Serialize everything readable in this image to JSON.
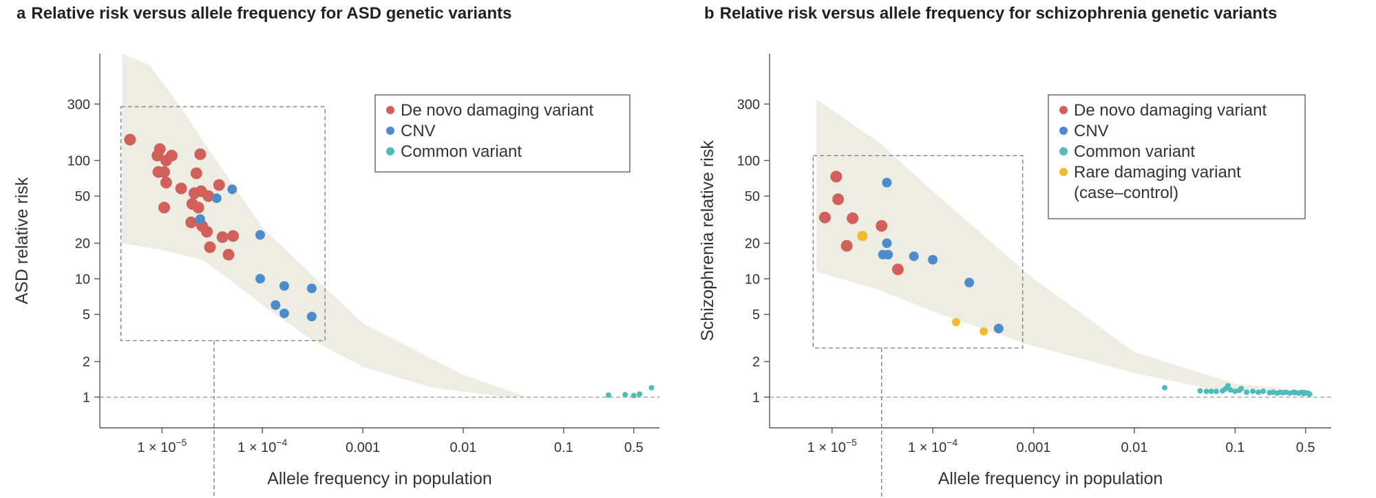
{
  "chart_data": [
    {
      "type": "scatter",
      "letter": "a",
      "title": "Relative risk versus allele frequency for ASD genetic variants",
      "xlabel": "Allele frequency in population",
      "ylabel": "ASD relative risk",
      "x_scale": "log",
      "y_scale": "log",
      "xlim": [
        2.4e-06,
        0.9
      ],
      "ylim": [
        0.55,
        800
      ],
      "x_ticks": [
        {
          "value": 1e-05,
          "base": "1 × 10",
          "exp": "−5"
        },
        {
          "value": 0.0001,
          "base": "1 × 10",
          "exp": "−4"
        },
        {
          "value": 0.001,
          "label": "0.001"
        },
        {
          "value": 0.01,
          "label": "0.01"
        },
        {
          "value": 0.1,
          "label": "0.1"
        },
        {
          "value": 0.5,
          "label": "0.5"
        }
      ],
      "y_ticks": [
        1,
        2,
        5,
        10,
        20,
        50,
        100,
        300
      ],
      "grid": false,
      "legend_position": "top-right",
      "series": [
        {
          "name": "De novo damaging variant",
          "color": "#d1605a",
          "marker_size": "large",
          "points": [
            [
              4.8e-06,
              150
            ],
            [
              9.5e-06,
              125
            ],
            [
              9e-06,
              110
            ],
            [
              1.25e-05,
              110
            ],
            [
              1.1e-05,
              100
            ],
            [
              1.05e-05,
              80
            ],
            [
              9.2e-06,
              80
            ],
            [
              2.4e-05,
              113
            ],
            [
              2.2e-05,
              78
            ],
            [
              1.55e-05,
              58
            ],
            [
              1.1e-05,
              65
            ],
            [
              2.1e-05,
              53
            ],
            [
              2.45e-05,
              55
            ],
            [
              3.7e-05,
              62
            ],
            [
              2e-05,
              43
            ],
            [
              2.3e-05,
              40
            ],
            [
              2.9e-05,
              50
            ],
            [
              1.05e-05,
              40
            ],
            [
              1.95e-05,
              30
            ],
            [
              2.5e-05,
              28
            ],
            [
              2.8e-05,
              25
            ],
            [
              3e-05,
              18.5
            ],
            [
              4e-05,
              22.5
            ],
            [
              5.1e-05,
              23
            ],
            [
              4.6e-05,
              16
            ]
          ]
        },
        {
          "name": "CNV",
          "color": "#4d8ccc",
          "marker_size": "medium",
          "points": [
            [
              5e-05,
              57
            ],
            [
              3.5e-05,
              48
            ],
            [
              2.4e-05,
              32
            ],
            [
              9.5e-05,
              23.5
            ],
            [
              9.5e-05,
              10
            ],
            [
              0.000165,
              8.7
            ],
            [
              0.00031,
              8.3
            ],
            [
              0.000135,
              6
            ],
            [
              0.000165,
              5.1
            ],
            [
              0.00031,
              4.8
            ]
          ]
        },
        {
          "name": "Common variant",
          "color": "#4dbcba",
          "marker_size": "small",
          "points": [
            [
              0.28,
              1.04
            ],
            [
              0.41,
              1.05
            ],
            [
              0.5,
              1.03
            ],
            [
              0.57,
              1.06
            ],
            [
              0.75,
              1.2
            ]
          ]
        }
      ]
    },
    {
      "type": "scatter",
      "letter": "b",
      "title": "Relative risk versus allele frequency for schizophrenia genetic variants",
      "xlabel": "Allele frequency in population",
      "ylabel": "Schizophrenia relative risk",
      "x_scale": "log",
      "y_scale": "log",
      "xlim": [
        2.4e-06,
        0.9
      ],
      "ylim": [
        0.55,
        800
      ],
      "x_ticks": [
        {
          "value": 1e-05,
          "base": "1 × 10",
          "exp": "−5"
        },
        {
          "value": 0.0001,
          "base": "1 × 10",
          "exp": "−4"
        },
        {
          "value": 0.001,
          "label": "0.001"
        },
        {
          "value": 0.01,
          "label": "0.01"
        },
        {
          "value": 0.1,
          "label": "0.1"
        },
        {
          "value": 0.5,
          "label": "0.5"
        }
      ],
      "y_ticks": [
        1,
        2,
        5,
        10,
        20,
        50,
        100,
        300
      ],
      "grid": false,
      "legend_position": "top-right",
      "series": [
        {
          "name": "De novo damaging variant",
          "color": "#d1605a",
          "marker_size": "large",
          "points": [
            [
              1.1e-05,
              73
            ],
            [
              1.15e-05,
              47
            ],
            [
              8.5e-06,
              33
            ],
            [
              1.6e-05,
              32.5
            ],
            [
              3.1e-05,
              28
            ],
            [
              1.4e-05,
              19
            ],
            [
              4.5e-05,
              12
            ]
          ]
        },
        {
          "name": "CNV",
          "color": "#4d8ccc",
          "marker_size": "medium",
          "points": [
            [
              3.5e-05,
              65
            ],
            [
              3.5e-05,
              20
            ],
            [
              3.2e-05,
              16
            ],
            [
              3.6e-05,
              16
            ],
            [
              6.5e-05,
              15.5
            ],
            [
              0.0001,
              14.5
            ],
            [
              0.00023,
              9.3
            ],
            [
              0.00045,
              3.8
            ]
          ]
        },
        {
          "name": "Common variant",
          "color": "#4dbcba",
          "marker_size": "small",
          "points": [
            [
              0.02,
              1.2
            ],
            [
              0.045,
              1.13
            ],
            [
              0.052,
              1.12
            ],
            [
              0.058,
              1.12
            ],
            [
              0.065,
              1.12
            ],
            [
              0.075,
              1.13
            ],
            [
              0.08,
              1.17
            ],
            [
              0.085,
              1.25
            ],
            [
              0.09,
              1.15
            ],
            [
              0.1,
              1.12
            ],
            [
              0.11,
              1.14
            ],
            [
              0.115,
              1.18
            ],
            [
              0.13,
              1.1
            ],
            [
              0.15,
              1.12
            ],
            [
              0.17,
              1.1
            ],
            [
              0.19,
              1.12
            ],
            [
              0.22,
              1.09
            ],
            [
              0.24,
              1.1
            ],
            [
              0.26,
              1.08
            ],
            [
              0.28,
              1.1
            ],
            [
              0.3,
              1.09
            ],
            [
              0.32,
              1.1
            ],
            [
              0.35,
              1.08
            ],
            [
              0.38,
              1.1
            ],
            [
              0.4,
              1.09
            ],
            [
              0.43,
              1.08
            ],
            [
              0.46,
              1.1
            ],
            [
              0.48,
              1.07
            ],
            [
              0.5,
              1.09
            ],
            [
              0.53,
              1.08
            ],
            [
              0.55,
              1.06
            ]
          ]
        },
        {
          "name": "Rare damaging variant\n(case–control)",
          "color": "#f2bb2b",
          "marker_size": "mixed",
          "points": [
            [
              2e-05,
              23
            ],
            [
              0.00017,
              4.3
            ],
            [
              0.00032,
              3.6
            ]
          ]
        }
      ]
    }
  ]
}
